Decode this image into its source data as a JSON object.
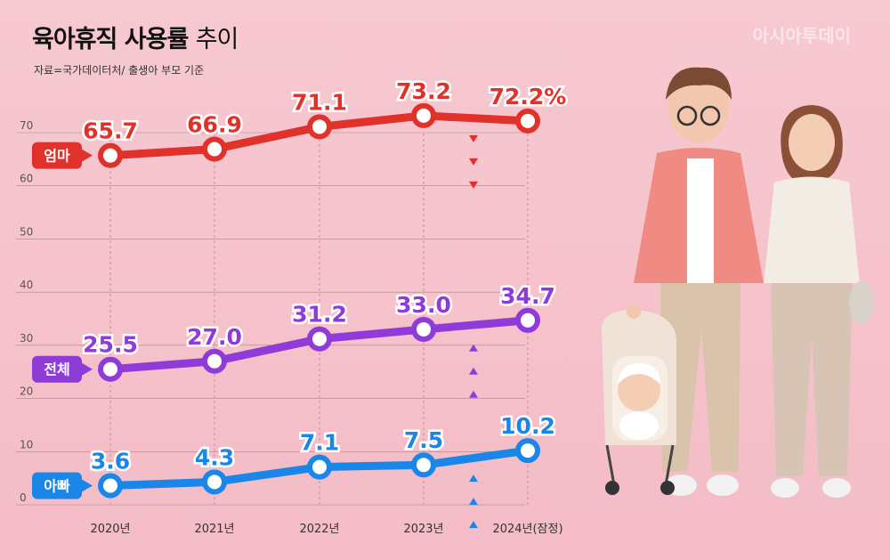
{
  "header": {
    "title_bold": "육아휴직 사용률",
    "title_light": "추이",
    "source": "자료=국가데이터처/ 출생아 부모 기준",
    "watermark": "아시아투데이"
  },
  "colors": {
    "mom": "#e0322b",
    "total": "#8e3bd8",
    "dad": "#1a86e8",
    "grid": "#8a6b70",
    "background": "#f6c3cc"
  },
  "illustration": "family-with-stroller",
  "chart_data": {
    "type": "line",
    "title": "육아휴직 사용률 추이",
    "x": [
      "2020년",
      "2021년",
      "2022년",
      "2023년",
      "2024년(잠정)"
    ],
    "ylim": [
      0,
      70
    ],
    "yticks": [
      0,
      10,
      20,
      30,
      40,
      50,
      60,
      70
    ],
    "grid": true,
    "series": [
      {
        "name": "엄마",
        "values": [
          65.7,
          66.9,
          71.1,
          73.2,
          72.2
        ],
        "labels": [
          "65.7",
          "66.9",
          "71.1",
          "73.2",
          "72.2%"
        ],
        "trend": "down"
      },
      {
        "name": "전체",
        "values": [
          25.5,
          27.0,
          31.2,
          33.0,
          34.7
        ],
        "labels": [
          "25.5",
          "27.0",
          "31.2",
          "33.0",
          "34.7"
        ],
        "trend": "up"
      },
      {
        "name": "아빠",
        "values": [
          3.6,
          4.3,
          7.1,
          7.5,
          10.2
        ],
        "labels": [
          "3.6",
          "4.3",
          "7.1",
          "7.5",
          "10.2"
        ],
        "trend": "up"
      }
    ]
  }
}
